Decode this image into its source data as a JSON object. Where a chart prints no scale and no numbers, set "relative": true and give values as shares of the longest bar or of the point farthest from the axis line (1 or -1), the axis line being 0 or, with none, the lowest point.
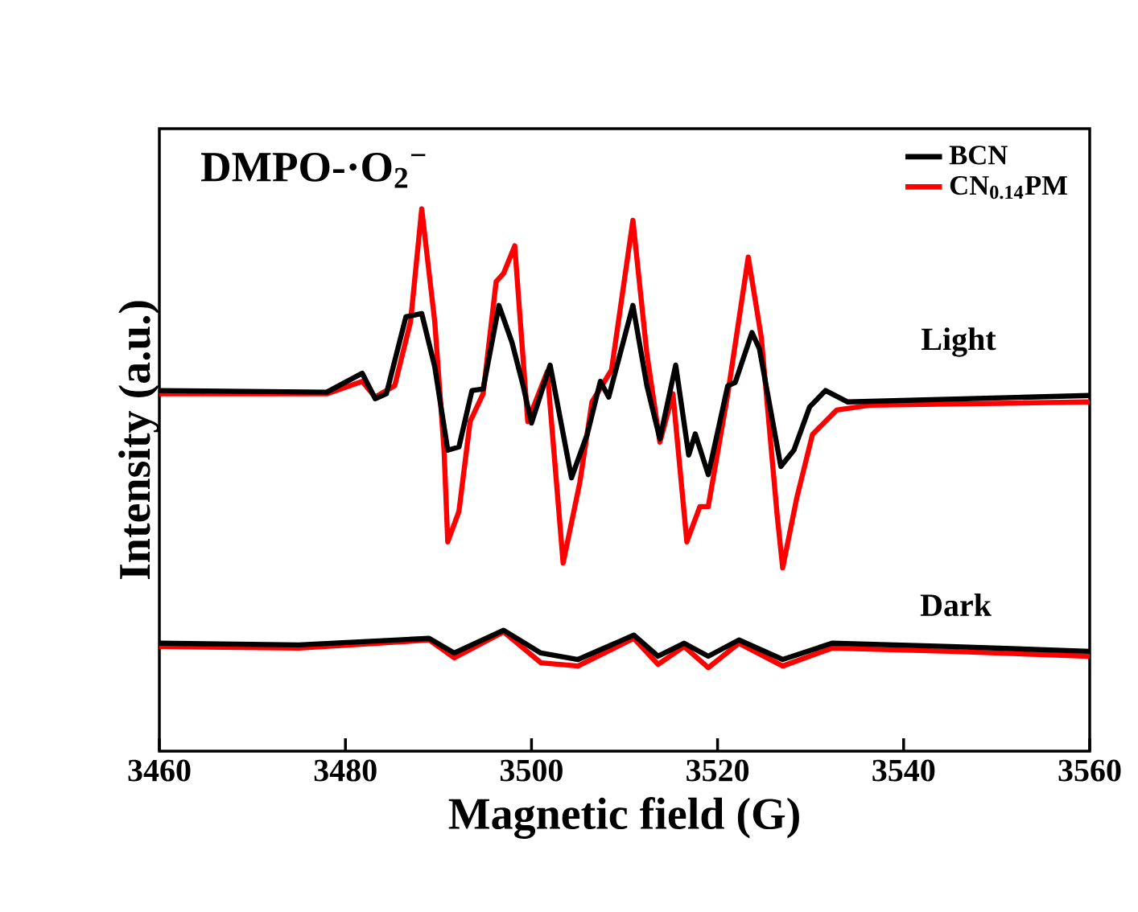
{
  "chart_data": {
    "type": "line",
    "relative": true,
    "title": "DMPO-·O$_{2}$$^{−}$",
    "xlabel": "Magnetic field (G)",
    "ylabel": "Intensity (a.u.)",
    "xlim": [
      3460,
      3560
    ],
    "xticks": [
      3460,
      3480,
      3500,
      3520,
      3540,
      3560
    ],
    "legend": "top right",
    "marker": "none",
    "line_style": "solid",
    "grid": false,
    "series": [
      {
        "name": "BCN",
        "color": "#000000",
        "x": [
          3460,
          3478,
          3481.8,
          3483.2,
          3484.4,
          3486.5,
          3488.2,
          3489.6,
          3491,
          3492.2,
          3493.6,
          3494.8,
          3496.5,
          3497.9,
          3499.1,
          3500,
          3502,
          3504.3,
          3506,
          3507.4,
          3508.3,
          3510.9,
          3512.4,
          3513.8,
          3515.5,
          3516.9,
          3517.6,
          3519,
          3521.1,
          3521.9,
          3523.7,
          3524.5,
          3526.8,
          3528.2,
          3529.9,
          3531.6,
          3534,
          3560
        ],
        "values": [
          0.665,
          0.662,
          0.697,
          0.65,
          0.659,
          0.801,
          0.807,
          0.709,
          0.555,
          0.561,
          0.665,
          0.668,
          0.822,
          0.754,
          0.674,
          0.605,
          0.712,
          0.504,
          0.585,
          0.682,
          0.653,
          0.822,
          0.674,
          0.576,
          0.712,
          0.546,
          0.585,
          0.51,
          0.674,
          0.68,
          0.772,
          0.742,
          0.525,
          0.555,
          0.635,
          0.665,
          0.644,
          0.656
        ]
      },
      {
        "name": "CN$_{0.14}$PM",
        "color": "#ff0000",
        "x": [
          3460,
          3478,
          3481.8,
          3483.2,
          3485.3,
          3487,
          3488.2,
          3489.6,
          3490.6,
          3491,
          3492.2,
          3493.4,
          3494.8,
          3496.2,
          3497,
          3498.2,
          3498.8,
          3499.6,
          3501.7,
          3503.4,
          3505.2,
          3506.5,
          3508.6,
          3510.9,
          3512.4,
          3513.8,
          3515.2,
          3516.7,
          3518.1,
          3519,
          3521.1,
          3523.3,
          3524.7,
          3526.4,
          3527,
          3528.5,
          3530.2,
          3532.8,
          3536.3,
          3560
        ],
        "values": [
          0.659,
          0.659,
          0.682,
          0.653,
          0.674,
          0.792,
          1.0,
          0.792,
          0.555,
          0.386,
          0.442,
          0.608,
          0.659,
          0.866,
          0.881,
          0.932,
          0.792,
          0.608,
          0.7,
          0.347,
          0.496,
          0.644,
          0.703,
          0.979,
          0.733,
          0.57,
          0.659,
          0.386,
          0.451,
          0.451,
          0.659,
          0.911,
          0.763,
          0.436,
          0.338,
          0.466,
          0.584,
          0.629,
          0.638,
          0.644
        ]
      },
      {
        "color": "#000000",
        "x": [
          3460,
          3475,
          3489,
          3491.7,
          3497,
          3501,
          3505,
          3511,
          3513.6,
          3516.4,
          3519,
          3522.3,
          3527,
          3532.3,
          3545,
          3560
        ],
        "values": [
          0.199,
          0.196,
          0.208,
          0.181,
          0.223,
          0.181,
          0.169,
          0.214,
          0.175,
          0.199,
          0.175,
          0.205,
          0.169,
          0.199,
          0.193,
          0.184
        ]
      },
      {
        "color": "#ff0000",
        "x": [
          3460,
          3475,
          3489,
          3491.7,
          3497,
          3501,
          3505,
          3511,
          3513.6,
          3516.4,
          3519,
          3522.3,
          3527,
          3532.3,
          3545,
          3560
        ],
        "values": [
          0.193,
          0.19,
          0.205,
          0.172,
          0.22,
          0.163,
          0.157,
          0.208,
          0.16,
          0.193,
          0.154,
          0.199,
          0.157,
          0.19,
          0.184,
          0.175
        ]
      }
    ],
    "annotations": [
      "Light",
      "Dark"
    ]
  }
}
